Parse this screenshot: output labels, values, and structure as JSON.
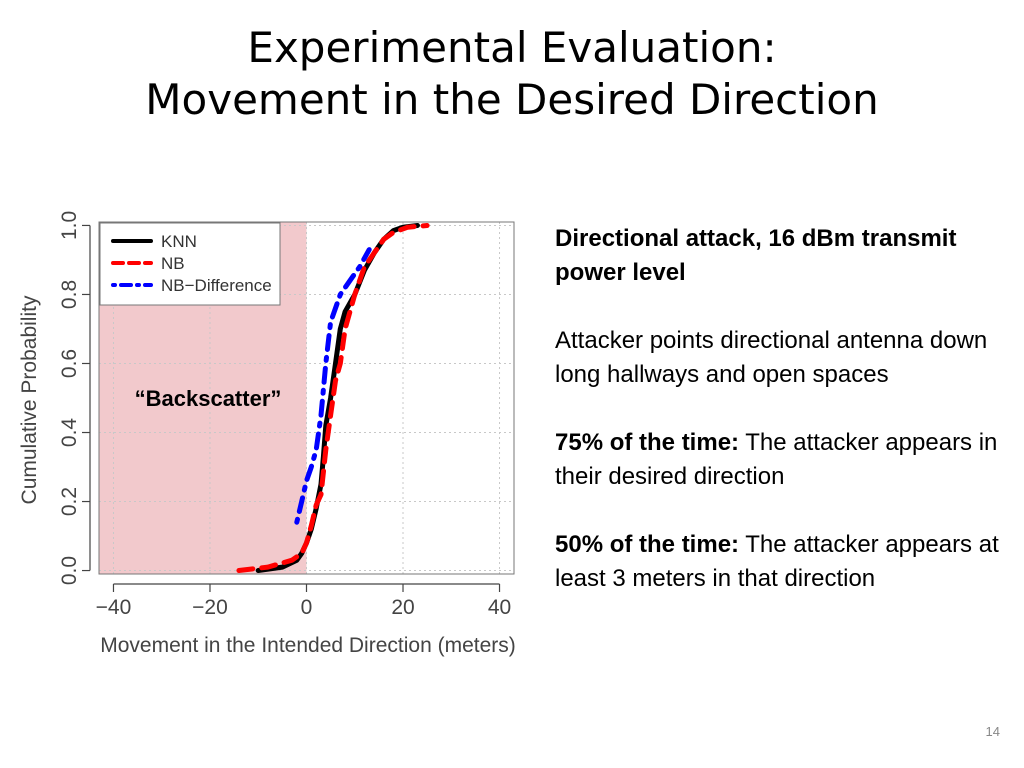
{
  "slide": {
    "title_lines": [
      "Experimental Evaluation:",
      "Movement in the Desired Direction"
    ],
    "page_number": "14"
  },
  "panel": {
    "heading": "Directional attack, 16 dBm transmit power level",
    "paragraph1": "Attacker points directional antenna down long hallways and open spaces",
    "p2_bold": "75% of the time:",
    "p2_text": "The attacker appears in their desired direction",
    "p3_bold": "50% of the time:",
    "p3_text": "The attacker appears at least 3 meters in that direction"
  },
  "chart_data": {
    "type": "line",
    "title": "",
    "xlabel": "Movement in the Intended Direction (meters)",
    "ylabel": "Cumulative Probability",
    "xlim": [
      -43,
      43
    ],
    "ylim": [
      -0.01,
      1.01
    ],
    "x_ticks": [
      -40,
      -20,
      0,
      20,
      40
    ],
    "x_tick_labels": [
      "−40",
      "−20",
      "0",
      "20",
      "40"
    ],
    "y_ticks": [
      0.0,
      0.2,
      0.4,
      0.6,
      0.8,
      1.0
    ],
    "y_tick_labels": [
      "0.0",
      "0.2",
      "0.4",
      "0.6",
      "0.8",
      "1.0"
    ],
    "grid": true,
    "legend_position": "top-left",
    "annotation": "“Backscatter”",
    "shaded_region": {
      "x": [
        -43,
        0
      ],
      "color": "#f2c9cc"
    },
    "series": [
      {
        "name": "KNN",
        "color": "#000000",
        "style": "solid",
        "points": [
          [
            -10,
            0.0
          ],
          [
            -5,
            0.01
          ],
          [
            -2,
            0.03
          ],
          [
            -1,
            0.05
          ],
          [
            0,
            0.08
          ],
          [
            1,
            0.12
          ],
          [
            2,
            0.18
          ],
          [
            3,
            0.25
          ],
          [
            3.5,
            0.33
          ],
          [
            4,
            0.42
          ],
          [
            5,
            0.5
          ],
          [
            6,
            0.6
          ],
          [
            7,
            0.7
          ],
          [
            8,
            0.75
          ],
          [
            10,
            0.8
          ],
          [
            12,
            0.87
          ],
          [
            14,
            0.92
          ],
          [
            16,
            0.96
          ],
          [
            18,
            0.985
          ],
          [
            20,
            0.995
          ],
          [
            23,
            1.0
          ]
        ]
      },
      {
        "name": "NB",
        "color": "#ff0000",
        "style": "dashed",
        "points": [
          [
            -14,
            0.0
          ],
          [
            -8,
            0.01
          ],
          [
            -3,
            0.03
          ],
          [
            -1,
            0.05
          ],
          [
            0,
            0.08
          ],
          [
            1,
            0.13
          ],
          [
            2,
            0.19
          ],
          [
            3,
            0.22
          ],
          [
            4,
            0.35
          ],
          [
            5,
            0.45
          ],
          [
            6,
            0.55
          ],
          [
            7,
            0.6
          ],
          [
            8,
            0.7
          ],
          [
            10,
            0.8
          ],
          [
            12,
            0.88
          ],
          [
            14,
            0.92
          ],
          [
            16,
            0.96
          ],
          [
            18,
            0.98
          ],
          [
            21,
            0.995
          ],
          [
            25,
            1.0
          ]
        ]
      },
      {
        "name": "NB−Difference",
        "color": "#0000ff",
        "style": "dashdot",
        "points": [
          [
            -2,
            0.14
          ],
          [
            -1,
            0.2
          ],
          [
            0,
            0.26
          ],
          [
            1,
            0.3
          ],
          [
            2,
            0.35
          ],
          [
            3,
            0.45
          ],
          [
            4,
            0.6
          ],
          [
            5,
            0.72
          ],
          [
            7,
            0.8
          ],
          [
            9,
            0.84
          ],
          [
            11,
            0.88
          ],
          [
            13,
            0.93
          ]
        ]
      }
    ]
  }
}
